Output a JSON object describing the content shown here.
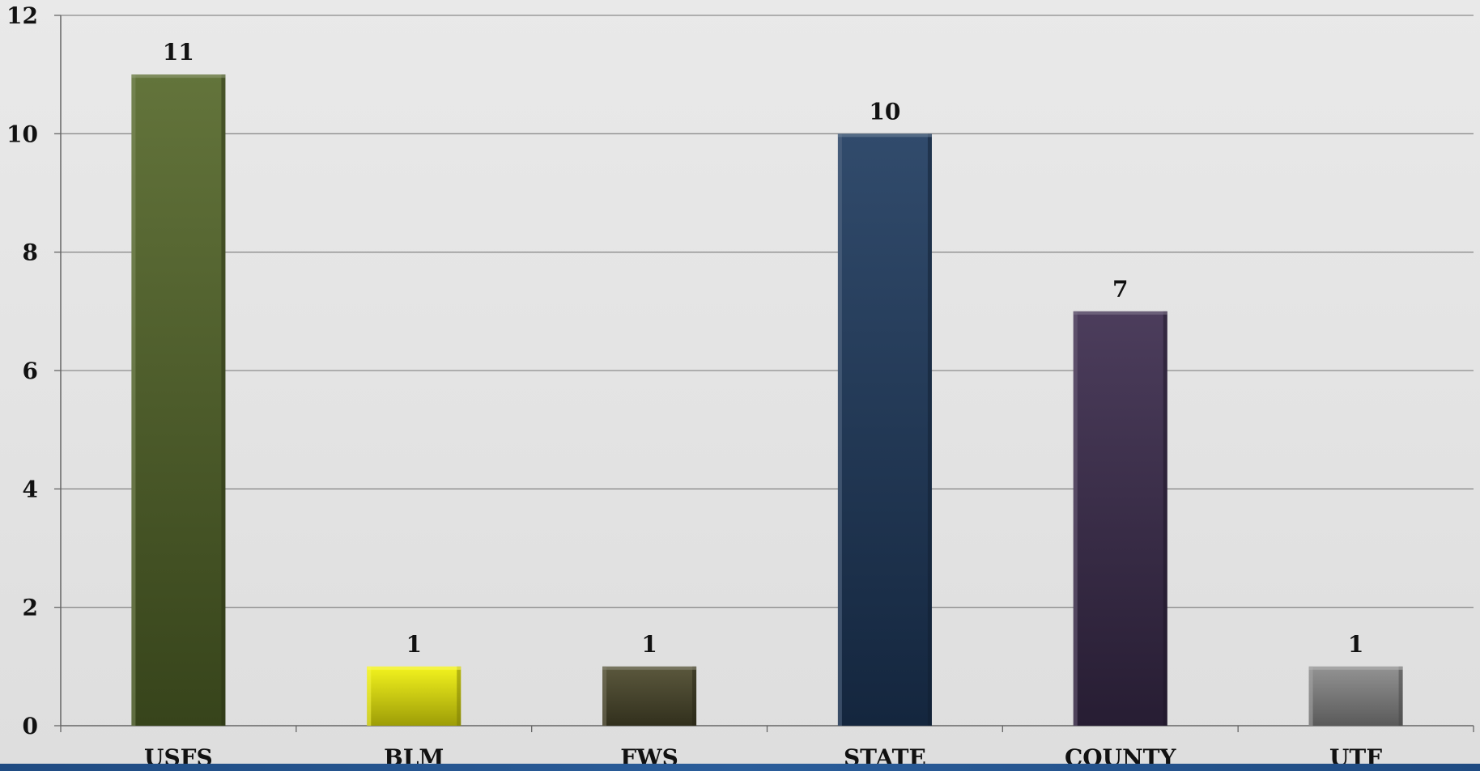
{
  "chart_data": {
    "type": "bar",
    "categories": [
      "USFS",
      "BLM",
      "FWS",
      "STATE",
      "COUNTY",
      "UTF"
    ],
    "values": [
      11,
      1,
      1,
      10,
      7,
      1
    ],
    "data_labels": [
      "11",
      "1",
      "1",
      "10",
      "7",
      "1"
    ],
    "colors": [
      "#55682a",
      "#f2f20a",
      "#4d4a2c",
      "#1f3b5f",
      "#3c2c4e",
      "#8a8a8a"
    ],
    "y_ticks": [
      0,
      2,
      4,
      6,
      8,
      10,
      12
    ],
    "y_tick_labels": [
      "0",
      "2",
      "4",
      "6",
      "8",
      "10",
      "12"
    ],
    "ylim": [
      0,
      12
    ],
    "grid": true,
    "legend": "none",
    "title": "",
    "xlabel": "",
    "ylabel": ""
  }
}
